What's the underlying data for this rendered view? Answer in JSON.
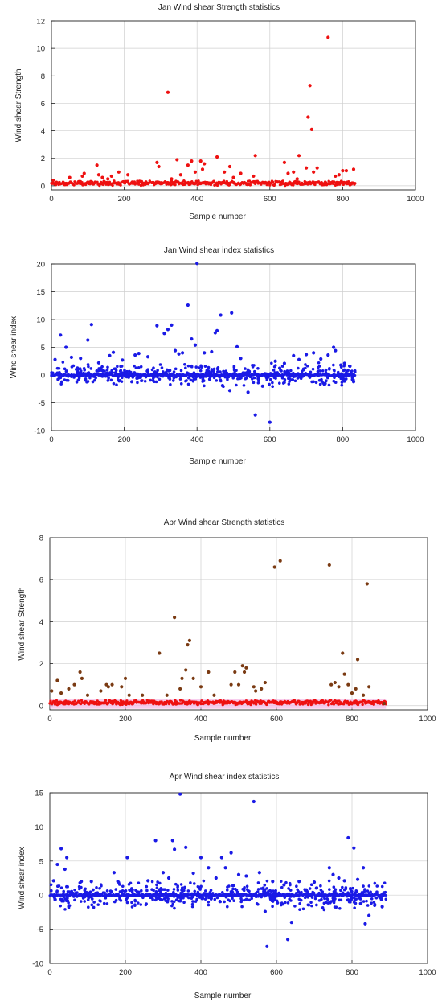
{
  "chart_data": [
    {
      "id": "jan-strength",
      "type": "scatter",
      "title": "Jan Wind shear Strength statistics",
      "xlabel": "Sample number",
      "ylabel": "Wind shear Strength",
      "xlim": [
        0,
        1000
      ],
      "ylim": [
        -0.3,
        12
      ],
      "xticks": [
        "0",
        "200",
        "400",
        "600",
        "800",
        "1000"
      ],
      "yticks": [
        "0",
        "2",
        "4",
        "6",
        "8",
        "10",
        "12"
      ],
      "grid": true,
      "series": [
        {
          "color": "#ee1111",
          "baseline": {
            "x_end": 835,
            "level": 0.12
          },
          "points": [
            [
              5,
              0.4
            ],
            [
              20,
              0.2
            ],
            [
              50,
              0.6
            ],
            [
              85,
              0.7
            ],
            [
              90,
              0.9
            ],
            [
              125,
              1.5
            ],
            [
              130,
              0.8
            ],
            [
              140,
              0.6
            ],
            [
              155,
              0.5
            ],
            [
              165,
              0.7
            ],
            [
              185,
              1.0
            ],
            [
              210,
              0.8
            ],
            [
              290,
              1.7
            ],
            [
              295,
              1.4
            ],
            [
              320,
              6.8
            ],
            [
              330,
              0.5
            ],
            [
              345,
              1.9
            ],
            [
              355,
              0.8
            ],
            [
              375,
              1.5
            ],
            [
              385,
              1.8
            ],
            [
              395,
              1.0
            ],
            [
              410,
              1.8
            ],
            [
              415,
              1.2
            ],
            [
              420,
              1.6
            ],
            [
              455,
              2.1
            ],
            [
              475,
              1.0
            ],
            [
              490,
              1.4
            ],
            [
              500,
              0.6
            ],
            [
              520,
              0.9
            ],
            [
              555,
              0.7
            ],
            [
              560,
              2.2
            ],
            [
              640,
              1.7
            ],
            [
              650,
              0.9
            ],
            [
              665,
              1.0
            ],
            [
              675,
              0.5
            ],
            [
              680,
              2.2
            ],
            [
              700,
              1.3
            ],
            [
              705,
              5.0
            ],
            [
              710,
              7.3
            ],
            [
              715,
              4.1
            ],
            [
              720,
              1.0
            ],
            [
              730,
              1.3
            ],
            [
              760,
              10.8
            ],
            [
              780,
              0.7
            ],
            [
              790,
              0.8
            ],
            [
              800,
              1.1
            ],
            [
              810,
              1.1
            ],
            [
              830,
              1.2
            ]
          ]
        }
      ]
    },
    {
      "id": "jan-index",
      "type": "scatter",
      "title": "Jan Wind shear index statistics",
      "xlabel": "Sample number",
      "ylabel": "Wind shear index",
      "xlim": [
        0,
        1000
      ],
      "ylim": [
        -10,
        20
      ],
      "xticks": [
        "0",
        "200",
        "400",
        "600",
        "800",
        "1000"
      ],
      "yticks": [
        "-10",
        "-5",
        "0",
        "5",
        "10",
        "15",
        "20"
      ],
      "grid": true,
      "series": [
        {
          "color": "#1a1ae6",
          "band": {
            "x_end": 835,
            "spread": 1.2,
            "count": 520
          },
          "points": [
            [
              10,
              2.8
            ],
            [
              25,
              7.2
            ],
            [
              40,
              5.0
            ],
            [
              55,
              3.2
            ],
            [
              80,
              3.0
            ],
            [
              100,
              6.3
            ],
            [
              110,
              9.1
            ],
            [
              130,
              2.2
            ],
            [
              160,
              3.5
            ],
            [
              170,
              4.1
            ],
            [
              195,
              2.7
            ],
            [
              230,
              3.6
            ],
            [
              240,
              3.9
            ],
            [
              265,
              3.3
            ],
            [
              290,
              8.9
            ],
            [
              310,
              7.5
            ],
            [
              320,
              8.2
            ],
            [
              330,
              9.0
            ],
            [
              340,
              4.4
            ],
            [
              350,
              3.8
            ],
            [
              360,
              4.0
            ],
            [
              375,
              12.6
            ],
            [
              385,
              6.5
            ],
            [
              395,
              5.4
            ],
            [
              400,
              20.1
            ],
            [
              420,
              4.0
            ],
            [
              440,
              4.2
            ],
            [
              450,
              7.6
            ],
            [
              455,
              8.0
            ],
            [
              465,
              10.8
            ],
            [
              495,
              11.2
            ],
            [
              510,
              5.1
            ],
            [
              520,
              3.0
            ],
            [
              540,
              -3.1
            ],
            [
              560,
              -7.2
            ],
            [
              580,
              -2.0
            ],
            [
              600,
              -8.5
            ],
            [
              615,
              2.5
            ],
            [
              640,
              2.1
            ],
            [
              665,
              3.5
            ],
            [
              680,
              2.8
            ],
            [
              700,
              3.7
            ],
            [
              720,
              4.0
            ],
            [
              740,
              2.9
            ],
            [
              760,
              3.6
            ],
            [
              775,
              5.0
            ],
            [
              780,
              4.4
            ],
            [
              795,
              1.8
            ],
            [
              805,
              2.1
            ],
            [
              820,
              1.6
            ],
            [
              830,
              -1.2
            ],
            [
              490,
              -2.8
            ],
            [
              470,
              -1.9
            ],
            [
              750,
              -1.7
            ]
          ]
        }
      ]
    },
    {
      "id": "apr-strength",
      "type": "scatter",
      "title": "Apr Wind shear Strength statistics",
      "xlabel": "Sample number",
      "ylabel": "Wind shear Strength",
      "xlim": [
        0,
        1000
      ],
      "ylim": [
        -0.2,
        8
      ],
      "xticks": [
        "0",
        "200",
        "400",
        "600",
        "800",
        "1000"
      ],
      "yticks": [
        "0",
        "2",
        "4",
        "6",
        "8"
      ],
      "grid": true,
      "series": [
        {
          "color": "#7a3a12",
          "baseline": {
            "x_end": 890,
            "level": 0.1,
            "color": "#ee1111",
            "halo": "#f4b8e6"
          },
          "points": [
            [
              5,
              0.7
            ],
            [
              20,
              1.2
            ],
            [
              30,
              0.6
            ],
            [
              50,
              0.8
            ],
            [
              65,
              1.0
            ],
            [
              80,
              1.6
            ],
            [
              85,
              1.3
            ],
            [
              100,
              0.5
            ],
            [
              135,
              0.7
            ],
            [
              150,
              1.0
            ],
            [
              155,
              0.9
            ],
            [
              165,
              1.0
            ],
            [
              190,
              0.9
            ],
            [
              200,
              1.3
            ],
            [
              210,
              0.5
            ],
            [
              245,
              0.5
            ],
            [
              290,
              2.5
            ],
            [
              310,
              0.5
            ],
            [
              330,
              4.2
            ],
            [
              345,
              0.8
            ],
            [
              350,
              1.3
            ],
            [
              360,
              1.7
            ],
            [
              365,
              2.9
            ],
            [
              370,
              3.1
            ],
            [
              380,
              1.3
            ],
            [
              400,
              0.9
            ],
            [
              420,
              1.6
            ],
            [
              435,
              0.5
            ],
            [
              480,
              1.0
            ],
            [
              490,
              1.6
            ],
            [
              500,
              1.0
            ],
            [
              510,
              1.9
            ],
            [
              515,
              1.6
            ],
            [
              520,
              1.8
            ],
            [
              540,
              0.9
            ],
            [
              545,
              0.7
            ],
            [
              560,
              0.8
            ],
            [
              570,
              1.1
            ],
            [
              595,
              6.6
            ],
            [
              610,
              6.9
            ],
            [
              740,
              6.7
            ],
            [
              745,
              1.0
            ],
            [
              755,
              1.1
            ],
            [
              765,
              0.9
            ],
            [
              775,
              2.5
            ],
            [
              780,
              1.5
            ],
            [
              790,
              1.0
            ],
            [
              800,
              0.6
            ],
            [
              810,
              0.8
            ],
            [
              815,
              2.2
            ],
            [
              830,
              0.5
            ],
            [
              840,
              5.8
            ],
            [
              845,
              0.9
            ],
            [
              885,
              0.1
            ]
          ]
        }
      ]
    },
    {
      "id": "apr-index",
      "type": "scatter",
      "title": "Apr Wind shear index statistics",
      "xlabel": "Sample number",
      "ylabel": "Wind shear index",
      "xlim": [
        0,
        1000
      ],
      "ylim": [
        -10,
        15
      ],
      "xticks": [
        "0",
        "200",
        "400",
        "600",
        "800",
        "1000"
      ],
      "yticks": [
        "-10",
        "-5",
        "0",
        "5",
        "10",
        "15"
      ],
      "grid": true,
      "series": [
        {
          "color": "#1a1ae6",
          "band": {
            "x_end": 890,
            "spread": 1.2,
            "count": 560
          },
          "points": [
            [
              10,
              2.1
            ],
            [
              20,
              4.5
            ],
            [
              30,
              6.8
            ],
            [
              40,
              3.8
            ],
            [
              45,
              5.5
            ],
            [
              80,
              1.8
            ],
            [
              110,
              2.0
            ],
            [
              170,
              3.3
            ],
            [
              180,
              2.0
            ],
            [
              205,
              5.5
            ],
            [
              260,
              2.1
            ],
            [
              280,
              8.0
            ],
            [
              300,
              3.3
            ],
            [
              315,
              2.5
            ],
            [
              325,
              8.0
            ],
            [
              330,
              6.7
            ],
            [
              345,
              14.8
            ],
            [
              360,
              7.0
            ],
            [
              380,
              3.2
            ],
            [
              400,
              5.5
            ],
            [
              420,
              4.0
            ],
            [
              440,
              2.5
            ],
            [
              455,
              5.5
            ],
            [
              465,
              4.0
            ],
            [
              480,
              6.2
            ],
            [
              500,
              3.0
            ],
            [
              520,
              2.8
            ],
            [
              540,
              13.7
            ],
            [
              555,
              3.3
            ],
            [
              570,
              -2.4
            ],
            [
              575,
              -7.5
            ],
            [
              590,
              2.0
            ],
            [
              620,
              1.5
            ],
            [
              630,
              -6.5
            ],
            [
              640,
              -4.0
            ],
            [
              660,
              2.0
            ],
            [
              700,
              1.9
            ],
            [
              740,
              4.0
            ],
            [
              750,
              3.0
            ],
            [
              765,
              2.5
            ],
            [
              780,
              2.1
            ],
            [
              790,
              8.4
            ],
            [
              805,
              6.9
            ],
            [
              815,
              2.3
            ],
            [
              830,
              4.0
            ],
            [
              835,
              -4.2
            ],
            [
              845,
              -3.0
            ],
            [
              860,
              -1.5
            ],
            [
              880,
              -1.7
            ]
          ]
        }
      ]
    }
  ]
}
